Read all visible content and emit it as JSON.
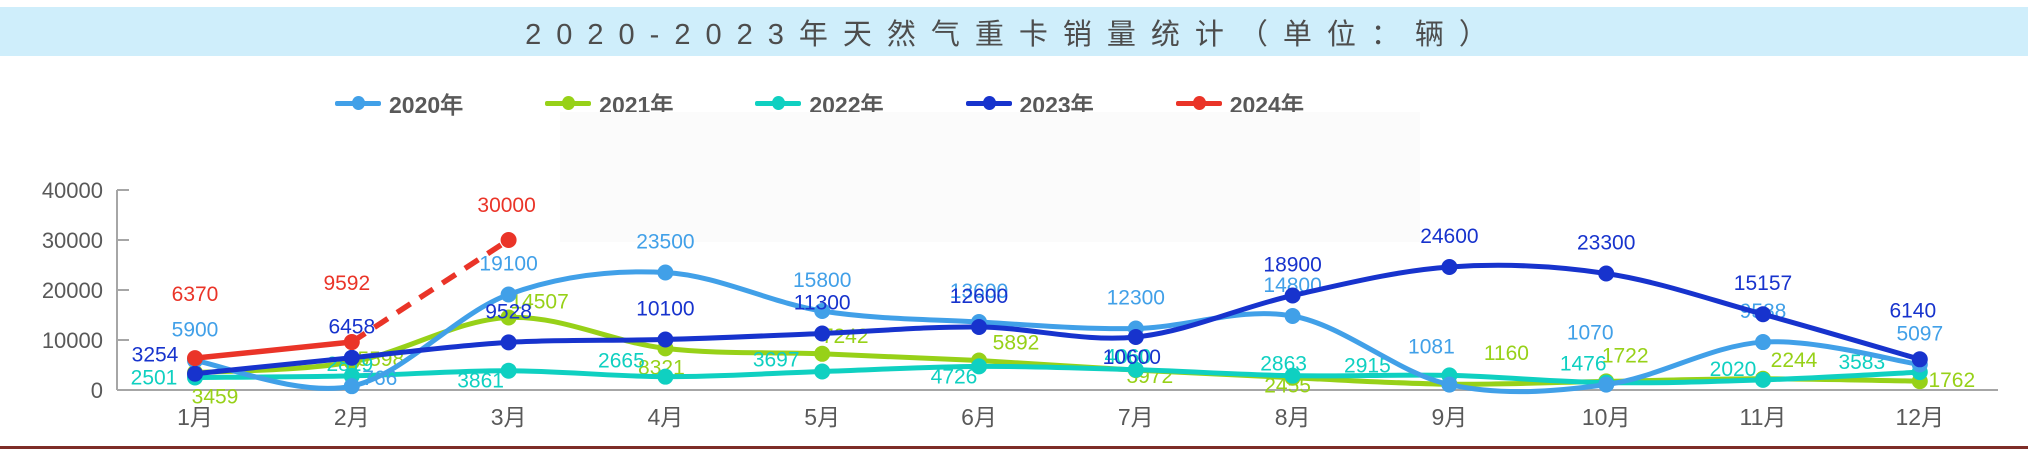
{
  "chart_data": {
    "type": "line",
    "title": "2020-2023年天然气重卡销量统计（单位：辆）",
    "categories": [
      "1月",
      "2月",
      "3月",
      "4月",
      "5月",
      "6月",
      "7月",
      "8月",
      "9月",
      "10月",
      "11月",
      "12月"
    ],
    "series": [
      {
        "name": "2020年",
        "color": "#41a0e8",
        "dashed": false,
        "values": [
          5900,
          766,
          19100,
          23500,
          15800,
          13600,
          12300,
          14800,
          1081,
          1070,
          9588,
          5097
        ]
      },
      {
        "name": "2021年",
        "color": "#97d118",
        "dashed": false,
        "values": [
          3459,
          5598,
          14507,
          8321,
          7242,
          5892,
          3972,
          2455,
          1160,
          1722,
          2244,
          1762
        ]
      },
      {
        "name": "2022年",
        "color": "#0fd0c1",
        "dashed": false,
        "values": [
          2501,
          2819,
          3861,
          2665,
          3697,
          4726,
          4060,
          2863,
          2915,
          1476,
          2020,
          3583
        ]
      },
      {
        "name": "2023年",
        "color": "#1733cd",
        "dashed": false,
        "values": [
          3254,
          6458,
          9528,
          10100,
          11300,
          12600,
          10600,
          18900,
          24600,
          23300,
          15157,
          6140
        ]
      },
      {
        "name": "2024年",
        "color": "#ea3428",
        "dashed": true,
        "values": [
          6370,
          9592,
          30000
        ]
      }
    ],
    "ylim": [
      0,
      40000
    ],
    "yticks": [
      0,
      10000,
      20000,
      30000,
      40000
    ],
    "xlabel": "",
    "ylabel": "",
    "grid": false,
    "legend_position": "top",
    "data_labels": true
  }
}
